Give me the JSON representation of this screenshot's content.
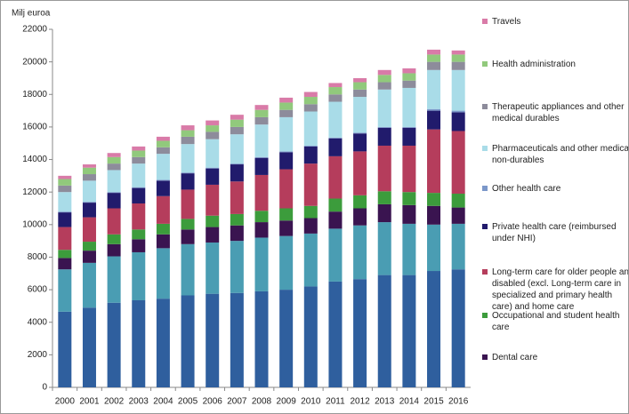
{
  "chart_data": {
    "type": "stacked_bar",
    "y_axis_label": "Milj euroa",
    "categories": [
      "2000",
      "2001",
      "2002",
      "2003",
      "2004",
      "2005",
      "2006",
      "2007",
      "2008",
      "2009",
      "2010",
      "2011",
      "2012",
      "2013",
      "2014",
      "2015",
      "2016"
    ],
    "ylim": [
      0,
      22000
    ],
    "yticks": [
      0,
      2000,
      4000,
      6000,
      8000,
      10000,
      12000,
      14000,
      16000,
      18000,
      20000,
      22000
    ],
    "grid": false,
    "series": [
      {
        "color": "#2f5f9e",
        "values": [
          4650,
          4900,
          5200,
          5350,
          5450,
          5650,
          5750,
          5800,
          5900,
          6000,
          6200,
          6500,
          6650,
          6900,
          6900,
          7150,
          7250
        ]
      },
      {
        "color": "#4a9db3",
        "values": [
          2600,
          2750,
          2850,
          2950,
          3100,
          3150,
          3150,
          3200,
          3300,
          3300,
          3250,
          3250,
          3300,
          3250,
          3150,
          2850,
          2800
        ]
      },
      {
        "name": "Dental care",
        "color": "#3a1450",
        "values": [
          700,
          750,
          750,
          800,
          850,
          900,
          950,
          950,
          950,
          950,
          950,
          1050,
          1050,
          1100,
          1150,
          1150,
          1000
        ]
      },
      {
        "name": "Occupational and student health care",
        "color": "#3c9c3c",
        "values": [
          500,
          550,
          600,
          600,
          650,
          650,
          700,
          700,
          700,
          750,
          750,
          800,
          800,
          800,
          800,
          800,
          850
        ]
      },
      {
        "name": "Long-term care for older people and disabled (excl. Long-term care in specialized and primary health care) and home care",
        "color": "#b53d5c",
        "values": [
          1400,
          1500,
          1600,
          1600,
          1700,
          1800,
          1900,
          2000,
          2200,
          2400,
          2600,
          2600,
          2700,
          2800,
          2850,
          3900,
          3850
        ]
      },
      {
        "name": "Private health care (reimbursed under NHI)",
        "color": "#211b6c",
        "values": [
          900,
          900,
          950,
          950,
          950,
          1000,
          1000,
          1050,
          1050,
          1050,
          1050,
          1100,
          1100,
          1100,
          1100,
          1150,
          1150
        ]
      },
      {
        "name": "Other health care",
        "color": "#7b97c9",
        "values": [
          50,
          50,
          50,
          50,
          50,
          50,
          50,
          50,
          50,
          50,
          50,
          50,
          50,
          50,
          50,
          100,
          100
        ]
      },
      {
        "name": "Pharmaceuticals and other medical non-durables",
        "color": "#a9dce8",
        "values": [
          1200,
          1300,
          1350,
          1450,
          1600,
          1750,
          1750,
          1800,
          2000,
          2100,
          2100,
          2200,
          2200,
          2300,
          2400,
          2400,
          2500
        ]
      },
      {
        "name": "Therapeutic appliances and other medical durables",
        "color": "#8d8c9b",
        "values": [
          400,
          400,
          400,
          400,
          400,
          450,
          450,
          450,
          450,
          450,
          450,
          450,
          450,
          450,
          450,
          500,
          500
        ]
      },
      {
        "name": "Health administration",
        "color": "#91c97c",
        "values": [
          400,
          400,
          400,
          400,
          400,
          400,
          400,
          450,
          450,
          450,
          450,
          450,
          450,
          450,
          450,
          450,
          450
        ]
      },
      {
        "name": "Travels",
        "color": "#d97ba8",
        "values": [
          200,
          200,
          250,
          250,
          250,
          300,
          300,
          300,
          300,
          300,
          300,
          250,
          250,
          300,
          300,
          300,
          250
        ]
      }
    ]
  }
}
